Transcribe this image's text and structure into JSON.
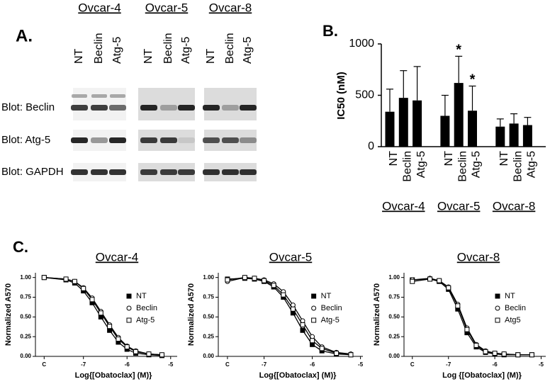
{
  "blot_panel": {
    "panel_label": "A.",
    "groups": [
      {
        "name": "Ovcar-4",
        "lanes": [
          "NT",
          "Beclin",
          "Atg-5"
        ]
      },
      {
        "name": "Ovcar-5",
        "lanes": [
          "NT",
          "Beclin",
          "Atg-5"
        ]
      },
      {
        "name": "Ovcar-8",
        "lanes": [
          "NT",
          "Beclin",
          "Atg-5"
        ]
      }
    ],
    "rows": [
      "Blot: Beclin",
      "Blot: Atg-5",
      "Blot: GAPDH"
    ]
  },
  "chart_data": [
    {
      "type": "bar",
      "panel_label": "B.",
      "y_label": "IC50 (nM)",
      "categories": [
        "NT",
        "Beclin",
        "Atg-5",
        "NT",
        "Beclin",
        "Atg-5",
        "NT",
        "Beclin",
        "Atg-5"
      ],
      "group_labels": [
        "Ovcar-4",
        "Ovcar-5",
        "Ovcar-8"
      ],
      "values": [
        340,
        475,
        450,
        300,
        620,
        350,
        195,
        225,
        210
      ],
      "errors": [
        220,
        265,
        330,
        200,
        260,
        240,
        75,
        95,
        75
      ],
      "significance": [
        null,
        null,
        null,
        null,
        "*",
        "*",
        null,
        null,
        null
      ],
      "color": "#000000",
      "ylim": [
        0,
        1000
      ],
      "yticks": [
        0,
        500,
        1000
      ]
    },
    {
      "type": "line",
      "panel_label": "C.",
      "title": "Ovcar-4",
      "y_label": "Normalized A570",
      "x_label": "Log{[Obatoclax] (M)}",
      "x": [
        -7.9,
        -7.4,
        -7.2,
        -7.0,
        -6.8,
        -6.6,
        -6.4,
        -6.2,
        -6.0,
        -5.8,
        -5.5,
        -5.2
      ],
      "series": [
        {
          "name": "NT",
          "color": "#000000",
          "marker": "square-filled",
          "values": [
            1.0,
            0.97,
            0.93,
            0.83,
            0.68,
            0.5,
            0.33,
            0.18,
            0.09,
            0.04,
            0.02,
            0.01
          ]
        },
        {
          "name": "Beclin",
          "color": "#000000",
          "marker": "circle-open",
          "values": [
            1.0,
            0.98,
            0.95,
            0.87,
            0.74,
            0.57,
            0.4,
            0.24,
            0.13,
            0.07,
            0.03,
            0.02
          ]
        },
        {
          "name": "Atg-5",
          "color": "#000000",
          "marker": "square-open",
          "values": [
            1.0,
            0.98,
            0.95,
            0.86,
            0.72,
            0.55,
            0.38,
            0.22,
            0.12,
            0.06,
            0.03,
            0.02
          ]
        }
      ],
      "xlim": [
        -8.1,
        -4.85
      ],
      "xticks": [
        {
          "value": -7.9,
          "label": "C"
        },
        -7,
        -6,
        -5
      ],
      "ylim": [
        0,
        1.06
      ],
      "yticks": [
        {
          "value": 0,
          "label": "0.00"
        },
        {
          "value": 0.25,
          "label": "0.25"
        },
        {
          "value": 0.5,
          "label": "0.50"
        },
        {
          "value": 0.75,
          "label": "0.75"
        },
        {
          "value": 1,
          "label": "1.00"
        }
      ]
    },
    {
      "type": "line",
      "title": "Ovcar-5",
      "y_label": "Normalized A570",
      "x_label": "Log{[Obatoclax] (M)}",
      "x": [
        -7.76,
        -7.4,
        -7.2,
        -7.0,
        -6.8,
        -6.6,
        -6.4,
        -6.2,
        -6.0,
        -5.8,
        -5.5,
        -5.2
      ],
      "series": [
        {
          "name": "NT",
          "color": "#000000",
          "marker": "square-filled",
          "values": [
            0.98,
            0.99,
            0.98,
            0.95,
            0.88,
            0.75,
            0.55,
            0.33,
            0.15,
            0.07,
            0.03,
            0.02
          ]
        },
        {
          "name": "Beclin",
          "color": "#000000",
          "marker": "circle-open",
          "values": [
            0.95,
            1.0,
            0.99,
            0.97,
            0.92,
            0.82,
            0.65,
            0.45,
            0.25,
            0.12,
            0.05,
            0.03
          ]
        },
        {
          "name": "Atg-5",
          "color": "#000000",
          "marker": "square-open",
          "values": [
            0.97,
            1.0,
            0.99,
            0.96,
            0.9,
            0.78,
            0.6,
            0.4,
            0.2,
            0.1,
            0.04,
            0.02
          ]
        }
      ],
      "xlim": [
        -7.95,
        -4.95
      ],
      "xticks": [
        {
          "value": -7.76,
          "label": "C"
        },
        -7,
        -6,
        -5
      ],
      "ylim": [
        0,
        1.06
      ],
      "yticks": [
        {
          "value": 0,
          "label": "0.00"
        },
        {
          "value": 0.25,
          "label": "0.25"
        },
        {
          "value": 0.5,
          "label": "0.50"
        },
        {
          "value": 0.75,
          "label": "0.75"
        },
        {
          "value": 1,
          "label": "1.00"
        }
      ]
    },
    {
      "type": "line",
      "title": "Ovcar-8",
      "y_label": "Normalized A570",
      "x_label": "Log {[Obatoclax] (M)}",
      "x": [
        -7.78,
        -7.4,
        -7.2,
        -7.0,
        -6.8,
        -6.6,
        -6.4,
        -6.2,
        -6.0,
        -5.8,
        -5.5,
        -5.2
      ],
      "series": [
        {
          "name": "NT",
          "color": "#000000",
          "marker": "square-filled",
          "values": [
            0.97,
            0.98,
            0.95,
            0.85,
            0.6,
            0.3,
            0.12,
            0.05,
            0.03,
            0.02,
            0.02,
            0.02
          ]
        },
        {
          "name": "Beclin",
          "color": "#000000",
          "marker": "circle-open",
          "values": [
            0.97,
            0.99,
            0.96,
            0.88,
            0.66,
            0.36,
            0.15,
            0.07,
            0.04,
            0.03,
            0.02,
            0.02
          ]
        },
        {
          "name": "Atg5",
          "color": "#000000",
          "marker": "square-open",
          "values": [
            0.95,
            0.98,
            0.96,
            0.87,
            0.64,
            0.34,
            0.14,
            0.06,
            0.04,
            0.03,
            0.02,
            0.02
          ]
        }
      ],
      "xlim": [
        -7.96,
        -4.9
      ],
      "xticks": [
        {
          "value": -7.78,
          "label": "C"
        },
        -7,
        -6,
        -5
      ],
      "ylim": [
        0,
        1.06
      ],
      "yticks": [
        {
          "value": 0,
          "label": "0.00"
        },
        {
          "value": 0.25,
          "label": "0.25"
        },
        {
          "value": 0.5,
          "label": "0.50"
        },
        {
          "value": 0.75,
          "label": "0.75"
        },
        {
          "value": 1,
          "label": "1.00"
        }
      ]
    }
  ]
}
